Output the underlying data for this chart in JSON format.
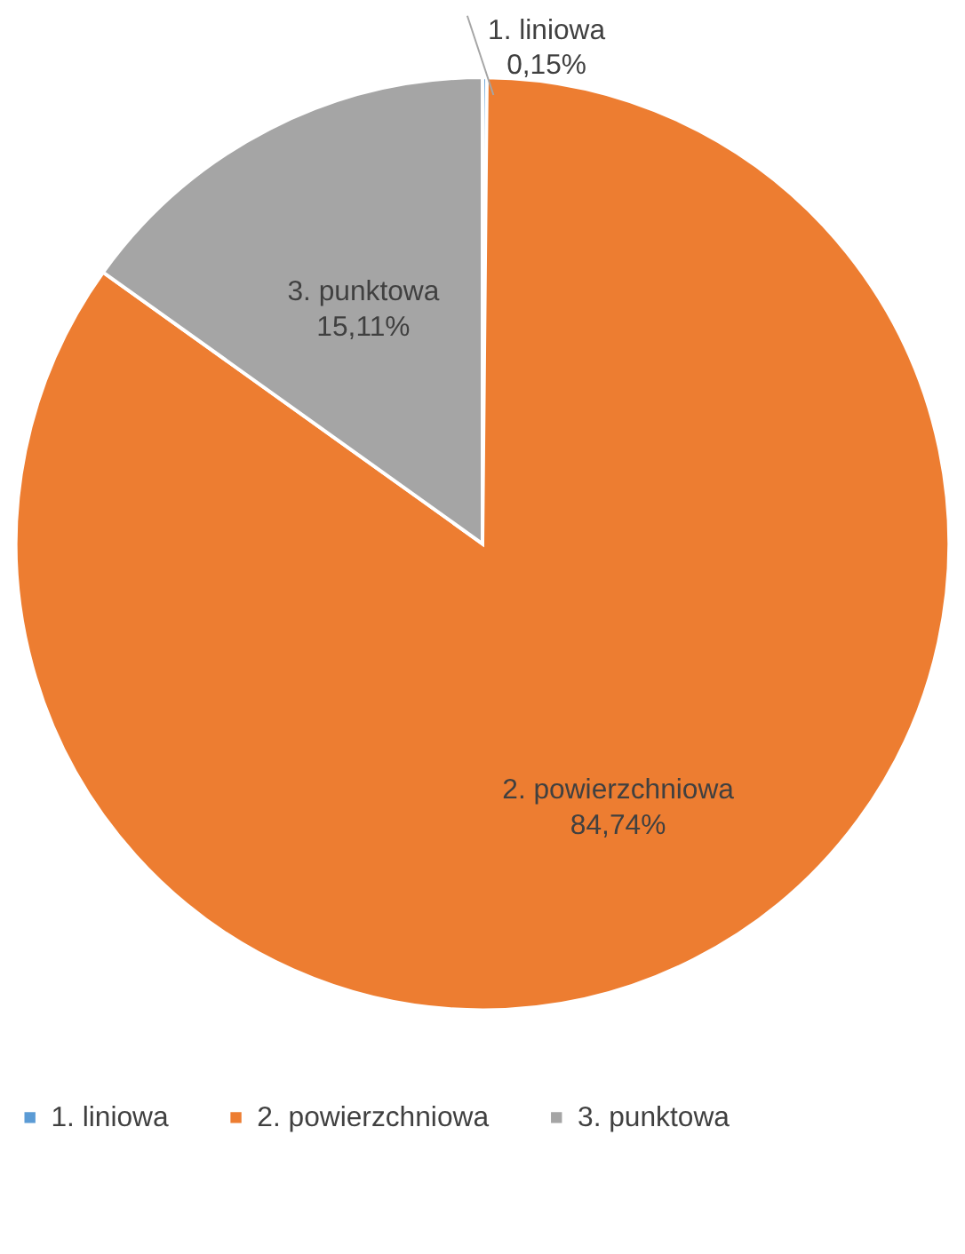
{
  "chart_data": {
    "type": "pie",
    "categories": [
      "1. liniowa",
      "2. powierzchniowa",
      "3. punktowa"
    ],
    "values": [
      0.15,
      84.74,
      15.11
    ],
    "colors": [
      "#5b9bd5",
      "#ed7d31",
      "#a5a5a5"
    ],
    "value_labels": [
      "0,15%",
      "84,74%",
      "15,11%"
    ],
    "legend": "bottom"
  }
}
